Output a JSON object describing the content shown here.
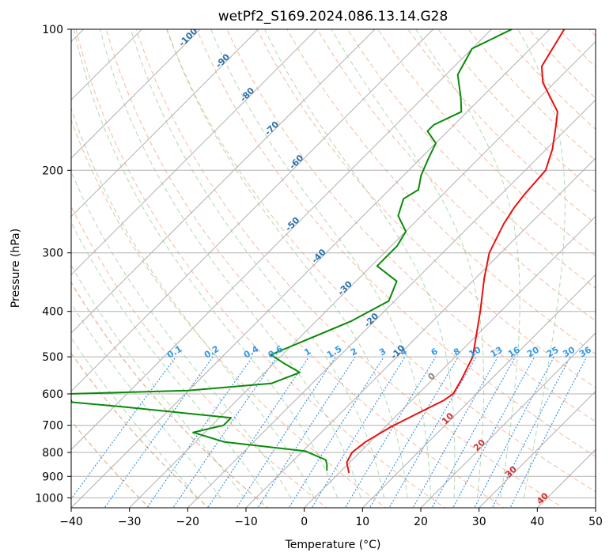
{
  "chart_data": {
    "type": "line",
    "title": "wetPf2_S169.2024.086.13.14.G28",
    "xlabel": "Temperature (°C)",
    "ylabel": "Pressure (hPa)",
    "xlim": [
      -40,
      50
    ],
    "ylim": [
      1050,
      100
    ],
    "y_scale": "log",
    "x_skew": "skew-T",
    "grid": true,
    "x_ticks": [
      -40,
      -30,
      -20,
      -10,
      0,
      10,
      20,
      30,
      40,
      50
    ],
    "x_tick_labels": [
      "−40",
      "−30",
      "−20",
      "−10",
      "0",
      "10",
      "20",
      "30",
      "40",
      "50"
    ],
    "y_ticks": [
      1000,
      900,
      800,
      700,
      600,
      500,
      400,
      300,
      200,
      100
    ],
    "y_tick_labels": [
      "1000",
      "900",
      "800",
      "700",
      "600",
      "500",
      "400",
      "300",
      "200",
      "100"
    ],
    "series": [
      {
        "kind": "temperature",
        "color": "#e8110f",
        "points": [
          [
            1.7,
            885
          ],
          [
            -0.5,
            840
          ],
          [
            -1.3,
            800
          ],
          [
            -0.8,
            760
          ],
          [
            1.0,
            705
          ],
          [
            3.0,
            665
          ],
          [
            5.5,
            620
          ],
          [
            6.0,
            600
          ],
          [
            5.0,
            560
          ],
          [
            3.0,
            500
          ],
          [
            -3.5,
            400
          ],
          [
            -8.5,
            340
          ],
          [
            -12.0,
            300
          ],
          [
            -14.5,
            260
          ],
          [
            -15.5,
            240
          ],
          [
            -16.0,
            225
          ],
          [
            -16.5,
            200
          ],
          [
            -19.0,
            180
          ],
          [
            -22.5,
            160
          ],
          [
            -24.5,
            150
          ],
          [
            -32.0,
            130
          ],
          [
            -35.0,
            120
          ],
          [
            -37.5,
            100
          ]
        ]
      },
      {
        "kind": "dewpoint",
        "color": "#0a8a0a",
        "points": [
          [
            -2.5,
            875
          ],
          [
            -3.5,
            850
          ],
          [
            -4.5,
            830
          ],
          [
            -9.5,
            795
          ],
          [
            -25.0,
            760
          ],
          [
            -32.0,
            725
          ],
          [
            -28.0,
            700
          ],
          [
            -28.0,
            675
          ],
          [
            -48.0,
            640
          ],
          [
            -58.0,
            625
          ],
          [
            -60.0,
            600
          ],
          [
            -40.0,
            590
          ],
          [
            -27.0,
            570
          ],
          [
            -24.0,
            540
          ],
          [
            -28.5,
            515
          ],
          [
            -32.0,
            495
          ],
          [
            -24.0,
            420
          ],
          [
            -21.0,
            380
          ],
          [
            -23.0,
            345
          ],
          [
            -29.0,
            320
          ],
          [
            -29.0,
            290
          ],
          [
            -30.0,
            270
          ],
          [
            -34.0,
            250
          ],
          [
            -36.0,
            230
          ],
          [
            -35.0,
            220
          ],
          [
            -37.0,
            205
          ],
          [
            -38.5,
            190
          ],
          [
            -40.0,
            175
          ],
          [
            -43.5,
            165
          ],
          [
            -43.5,
            160
          ],
          [
            -41.0,
            150
          ],
          [
            -43.5,
            140
          ],
          [
            -48.0,
            125
          ],
          [
            -50.0,
            110
          ],
          [
            -46.5,
            100
          ]
        ]
      }
    ],
    "skewed_isotherm_labels": [
      "-100",
      "-90",
      "-80",
      "-70",
      "-60",
      "-50",
      "-40",
      "-30",
      "-20",
      "-10",
      "0",
      "10",
      "20",
      "30",
      "40"
    ],
    "mixing_ratio_labels": [
      "0.1",
      "0.2",
      "0.4",
      "0.6",
      "1",
      "1.5",
      "2",
      "3",
      "4",
      "6",
      "8",
      "10",
      "13",
      "16",
      "20",
      "25",
      "30",
      "36"
    ],
    "mixing_ratio_label_pressure": 500,
    "colors": {
      "isotherm": "#b0b0b0",
      "isobar": "#b0b0b0",
      "dry_adiabat": "#f4a27e",
      "moist_adiabat": "#8fc98f",
      "mixing_ratio": "#2e8fe0",
      "cold_label": "#2b6fa8",
      "warm_label": "#d03030",
      "zero_label": "#888888",
      "mixing_label": "#3399e8",
      "outer_adiabat": "#d9b896"
    }
  }
}
